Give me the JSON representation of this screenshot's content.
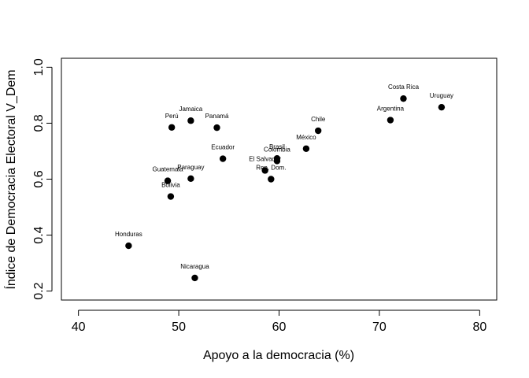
{
  "chart_data": {
    "type": "scatter",
    "title": "",
    "xlabel": "Apoyo a la democracia (%)",
    "ylabel": "Índice de Democracia Electoral V_Dem",
    "xlim": [
      38.3,
      81.7
    ],
    "ylim": [
      0.168,
      1.032
    ],
    "xticks": [
      40,
      50,
      60,
      70,
      80
    ],
    "yticks": [
      0.2,
      0.4,
      0.6,
      0.8,
      1.0
    ],
    "xtick_labels": [
      "40",
      "50",
      "60",
      "70",
      "80"
    ],
    "ytick_labels": [
      "0.2",
      "0.4",
      "0.6",
      "0.8",
      "1.0"
    ],
    "grid": false,
    "marker_color": "#000000",
    "points": [
      {
        "label": "Costa Rica",
        "x": 72.4,
        "y": 0.888
      },
      {
        "label": "Uruguay",
        "x": 76.2,
        "y": 0.857
      },
      {
        "label": "Argentina",
        "x": 71.1,
        "y": 0.811
      },
      {
        "label": "Chile",
        "x": 63.9,
        "y": 0.773
      },
      {
        "label": "México",
        "x": 62.7,
        "y": 0.709
      },
      {
        "label": "Jamaica",
        "x": 51.2,
        "y": 0.809
      },
      {
        "label": "Perú",
        "x": 49.3,
        "y": 0.785
      },
      {
        "label": "Panamá",
        "x": 53.8,
        "y": 0.784
      },
      {
        "label": "Ecuador",
        "x": 54.4,
        "y": 0.673
      },
      {
        "label": "Brasil",
        "x": 59.8,
        "y": 0.674
      },
      {
        "label": "Colombia",
        "x": 59.8,
        "y": 0.665
      },
      {
        "label": "El Salvador",
        "x": 58.6,
        "y": 0.631
      },
      {
        "label": "Rep. Dom.",
        "x": 59.2,
        "y": 0.6
      },
      {
        "label": "Paraguay",
        "x": 51.2,
        "y": 0.602
      },
      {
        "label": "Guatemala",
        "x": 48.9,
        "y": 0.594
      },
      {
        "label": "Bolivia",
        "x": 49.2,
        "y": 0.538
      },
      {
        "label": "Honduras",
        "x": 45.0,
        "y": 0.362
      },
      {
        "label": "Nicaragua",
        "x": 51.6,
        "y": 0.247
      }
    ]
  }
}
